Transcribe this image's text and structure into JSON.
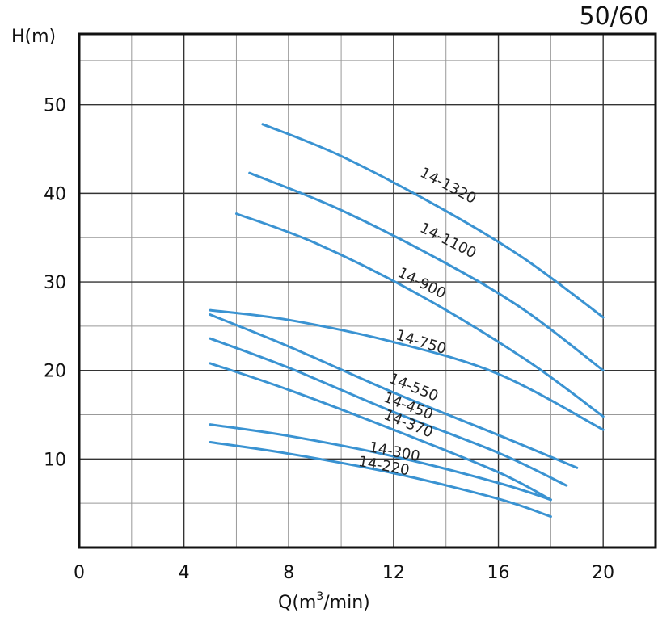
{
  "corner_label": "50/60",
  "chart_data": {
    "type": "line",
    "ylabel": "H(m)",
    "xlabel_prefix": "Q(m",
    "xlabel_sup": "3",
    "xlabel_suffix": "/min)",
    "xlim": [
      0,
      22
    ],
    "ylim": [
      0,
      58
    ],
    "x_ticks": [
      0,
      4,
      8,
      12,
      16,
      20
    ],
    "y_ticks": [
      10,
      20,
      30,
      40,
      50
    ],
    "grid": true,
    "line_color": "#3a93d2",
    "series": [
      {
        "name": "14-1320",
        "x": [
          7,
          10,
          14,
          17,
          20
        ],
        "y": [
          47.8,
          44.2,
          38.0,
          32.6,
          26.0
        ],
        "label_at": [
          14,
          40.4
        ]
      },
      {
        "name": "14-1100",
        "x": [
          6.5,
          10,
          14,
          17,
          20
        ],
        "y": [
          42.3,
          38.1,
          32.1,
          26.8,
          20.0
        ],
        "label_at": [
          14,
          34.2
        ]
      },
      {
        "name": "14-900",
        "x": [
          6,
          9,
          13,
          17,
          20
        ],
        "y": [
          37.7,
          34.4,
          28.5,
          21.3,
          14.8
        ],
        "label_at": [
          13,
          29.4
        ]
      },
      {
        "name": "14-750",
        "x": [
          5,
          8,
          12,
          16,
          20
        ],
        "y": [
          26.8,
          25.7,
          23.2,
          19.6,
          13.3
        ],
        "label_at": [
          13,
          22.7
        ]
      },
      {
        "name": "14-550",
        "x": [
          5,
          8,
          12,
          16,
          19
        ],
        "y": [
          26.3,
          22.7,
          17.5,
          12.7,
          9.0
        ],
        "label_at": [
          12.7,
          17.6
        ]
      },
      {
        "name": "14-450",
        "x": [
          5,
          8,
          12,
          16,
          18.6
        ],
        "y": [
          23.6,
          20.3,
          15.3,
          10.7,
          7.0
        ],
        "label_at": [
          12.5,
          15.5
        ]
      },
      {
        "name": "14-370",
        "x": [
          5,
          8,
          12,
          16,
          18
        ],
        "y": [
          20.8,
          17.8,
          13.3,
          8.5,
          5.4
        ],
        "label_at": [
          12.5,
          13.5
        ]
      },
      {
        "name": "14-300",
        "x": [
          5,
          8,
          12,
          16,
          18
        ],
        "y": [
          13.9,
          12.6,
          10.3,
          7.3,
          5.4
        ],
        "label_at": [
          12,
          10.3
        ]
      },
      {
        "name": "14-220",
        "x": [
          5,
          8,
          12,
          16,
          18
        ],
        "y": [
          11.9,
          10.6,
          8.4,
          5.5,
          3.5
        ],
        "label_at": [
          11.6,
          8.7
        ]
      }
    ]
  }
}
